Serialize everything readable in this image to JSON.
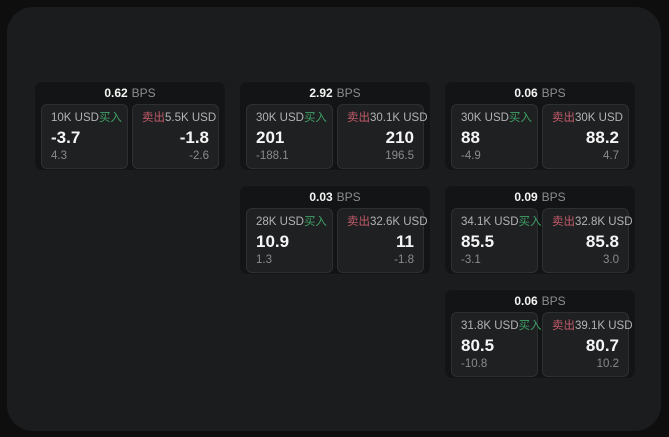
{
  "labels": {
    "bps_unit": "BPS",
    "buy": "买入",
    "sell": "卖出"
  },
  "colors": {
    "buy_accent": "#3fa065",
    "sell_accent": "#c25b69",
    "panel_background": "#1b1c1d",
    "card_background": "#131415"
  },
  "cards": [
    {
      "row": 1,
      "col": 1,
      "bps": "0.62",
      "buy": {
        "amount": "10K USD",
        "value": "-3.7",
        "change": "4.3"
      },
      "sell": {
        "amount": "5.5K USD",
        "value": "-1.8",
        "change": "-2.6"
      }
    },
    {
      "row": 1,
      "col": 2,
      "bps": "2.92",
      "buy": {
        "amount": "30K USD",
        "value": "201",
        "change": "-188.1"
      },
      "sell": {
        "amount": "30.1K USD",
        "value": "210",
        "change": "196.5"
      }
    },
    {
      "row": 1,
      "col": 3,
      "bps": "0.06",
      "buy": {
        "amount": "30K USD",
        "value": "88",
        "change": "-4.9"
      },
      "sell": {
        "amount": "30K USD",
        "value": "88.2",
        "change": "4.7"
      }
    },
    {
      "row": 2,
      "col": 2,
      "bps": "0.03",
      "buy": {
        "amount": "28K USD",
        "value": "10.9",
        "change": "1.3"
      },
      "sell": {
        "amount": "32.6K USD",
        "value": "11",
        "change": "-1.8"
      }
    },
    {
      "row": 2,
      "col": 3,
      "bps": "0.09",
      "buy": {
        "amount": "34.1K USD",
        "value": "85.5",
        "change": "-3.1"
      },
      "sell": {
        "amount": "32.8K USD",
        "value": "85.8",
        "change": "3.0"
      }
    },
    {
      "row": 3,
      "col": 3,
      "bps": "0.06",
      "buy": {
        "amount": "31.8K USD",
        "value": "80.5",
        "change": "-10.8"
      },
      "sell": {
        "amount": "39.1K USD",
        "value": "80.7",
        "change": "10.2"
      }
    }
  ]
}
